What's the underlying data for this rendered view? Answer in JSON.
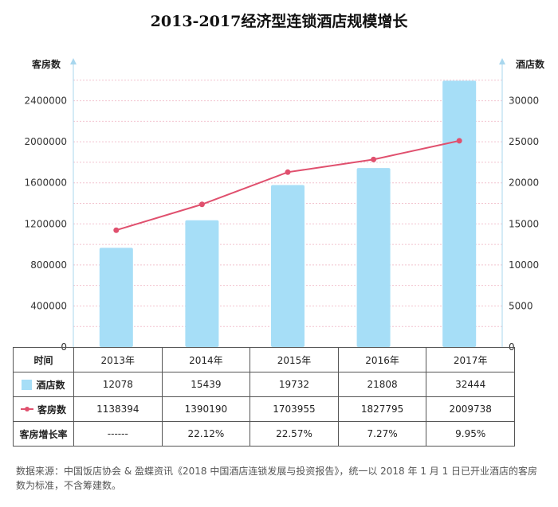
{
  "chart_data": {
    "type": "bar+line",
    "title": "2013-2017经济型连锁酒店规模增长",
    "categories": [
      "2013年",
      "2014年",
      "2015年",
      "2016年",
      "2017年"
    ],
    "series": [
      {
        "name": "酒店数",
        "type": "bar",
        "axis": "right",
        "color": "#a6def7",
        "values": [
          12078,
          15439,
          19732,
          21808,
          32444
        ]
      },
      {
        "name": "客房数",
        "type": "line",
        "axis": "left",
        "color": "#e0506e",
        "values": [
          1138394,
          1390190,
          1703955,
          1827795,
          2009738
        ]
      }
    ],
    "y_left": {
      "label": "客房数",
      "ticks": [
        0,
        400000,
        800000,
        1200000,
        1600000,
        2000000,
        2400000
      ]
    },
    "y_right": {
      "label": "酒店数",
      "ticks": [
        0,
        5000,
        10000,
        15000,
        20000,
        25000,
        30000
      ]
    },
    "grid": true
  },
  "table": {
    "header_label": "时间",
    "rows": [
      {
        "key": "hotels",
        "label": "酒店数",
        "legend": "bar",
        "values": [
          "12078",
          "15439",
          "19732",
          "21808",
          "32444"
        ]
      },
      {
        "key": "rooms",
        "label": "客房数",
        "legend": "line",
        "values": [
          "1138394",
          "1390190",
          "1703955",
          "1827795",
          "2009738"
        ]
      },
      {
        "key": "growth",
        "label": "客房增长率",
        "legend": "",
        "values": [
          "------",
          "22.12%",
          "22.57%",
          "7.27%",
          "9.95%"
        ]
      }
    ]
  },
  "footnote": "数据来源：中国饭店协会 & 盈蝶资讯《2018 中国酒店连锁发展与投资报告》，统一以 2018 年 1 月 1 日已开业酒店的客房数为标准，不含筹建数。"
}
